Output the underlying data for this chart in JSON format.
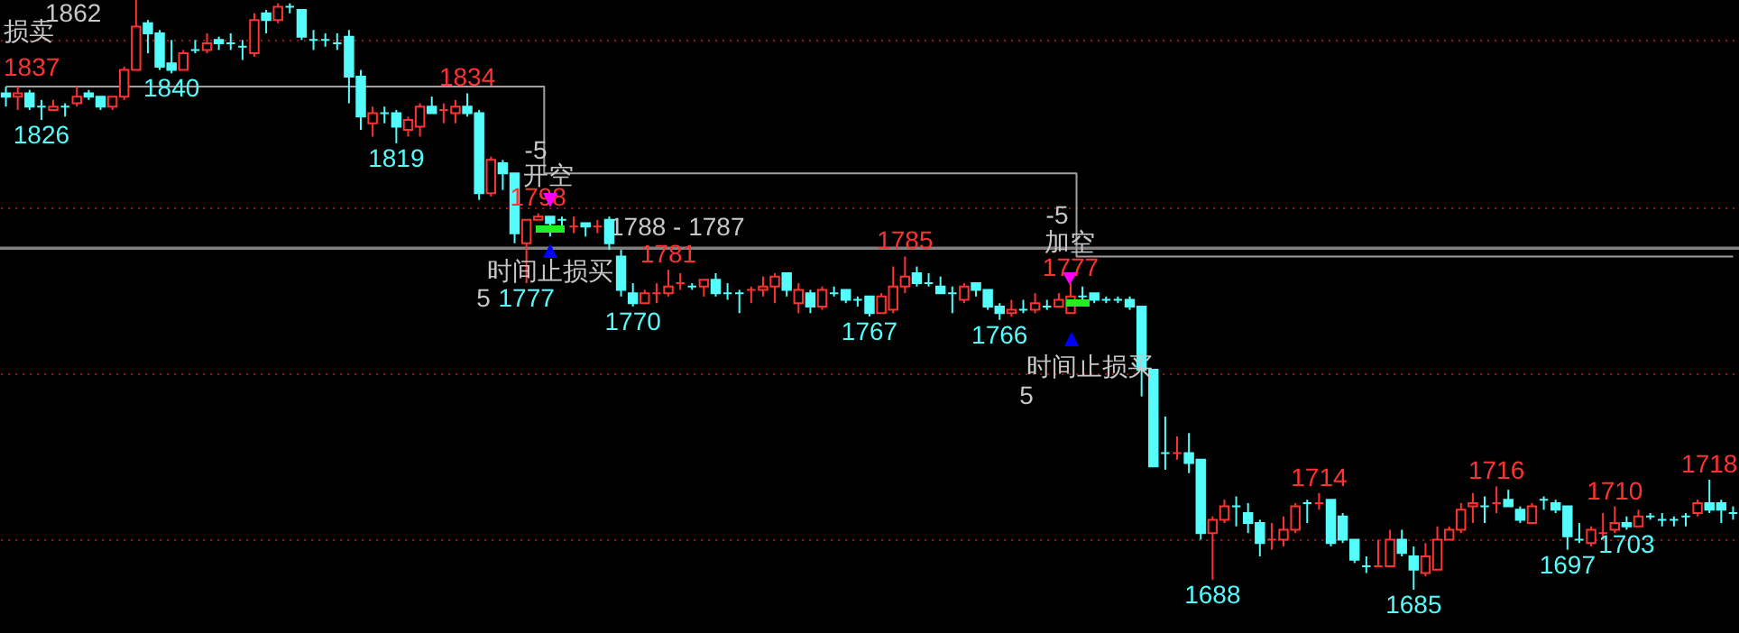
{
  "chart_data": {
    "type": "candlestick",
    "categories": [
      null,
      null,
      null,
      null,
      null,
      null,
      null,
      null,
      null,
      null,
      null,
      null,
      null,
      null,
      null,
      null,
      null,
      null,
      null,
      null,
      null,
      null,
      null,
      null,
      null,
      null,
      null,
      null,
      null,
      null,
      null,
      null,
      null,
      null,
      null,
      null,
      null,
      null,
      null,
      null,
      null,
      null,
      null,
      null,
      null,
      null,
      null,
      null,
      null,
      null,
      null,
      null,
      null,
      null,
      null,
      null,
      null,
      null,
      null,
      null,
      null,
      null,
      null,
      null,
      null,
      null,
      null,
      null,
      null,
      null,
      null,
      null,
      null,
      null,
      null,
      null,
      null,
      null,
      null,
      null,
      null,
      null,
      null,
      null,
      null,
      null,
      null,
      null,
      null,
      null,
      null,
      null,
      null,
      null,
      null,
      null,
      null,
      null,
      null,
      null,
      null,
      null,
      null,
      null,
      null,
      null,
      null,
      null,
      null,
      null,
      null,
      null,
      null,
      null,
      null,
      null,
      null,
      null,
      null,
      null,
      null,
      null,
      null,
      null,
      null,
      null,
      null,
      null,
      null,
      null,
      null,
      null,
      null,
      null,
      null,
      null,
      null,
      null,
      null,
      null,
      null,
      null,
      null,
      null,
      null,
      null,
      null
    ],
    "ohlc": [
      [
        1834,
        1836,
        1830,
        1833
      ],
      [
        1833,
        1836,
        1829,
        1834
      ],
      [
        1834,
        1835,
        1829,
        1830
      ],
      [
        1830,
        1832,
        1826,
        1830
      ],
      [
        1829,
        1832,
        1829,
        1830
      ],
      [
        1830,
        1831,
        1827,
        1830
      ],
      [
        1831,
        1836,
        1830,
        1833
      ],
      [
        1834,
        1835,
        1832,
        1833
      ],
      [
        1833,
        1833,
        1829,
        1830
      ],
      [
        1830,
        1833,
        1829,
        1833
      ],
      [
        1833,
        1842,
        1832,
        1841
      ],
      [
        1841,
        1862,
        1841,
        1854
      ],
      [
        1855,
        1856,
        1846,
        1852
      ],
      [
        1852,
        1853,
        1841,
        1842
      ],
      [
        1843,
        1850,
        1840,
        1841
      ],
      [
        1841,
        1847,
        1841,
        1846
      ],
      [
        1847,
        1850,
        1846,
        1847
      ],
      [
        1847,
        1852,
        1846,
        1849
      ],
      [
        1850,
        1851,
        1847,
        1849
      ],
      [
        1849,
        1852,
        1847,
        1849
      ],
      [
        1848,
        1850,
        1844,
        1848
      ],
      [
        1846,
        1858,
        1845,
        1856
      ],
      [
        1858,
        1859,
        1852,
        1856
      ],
      [
        1856,
        1861,
        1855,
        1860
      ],
      [
        1860,
        1861,
        1858,
        1860
      ],
      [
        1859,
        1859,
        1850,
        1851
      ],
      [
        1850,
        1853,
        1847,
        1850
      ],
      [
        1850,
        1852,
        1848,
        1850
      ],
      [
        1849,
        1852,
        1847,
        1849
      ],
      [
        1851,
        1853,
        1831,
        1839
      ],
      [
        1839,
        1841,
        1823,
        1827
      ],
      [
        1825,
        1830,
        1821,
        1828
      ],
      [
        1828,
        1830,
        1825,
        1828
      ],
      [
        1828,
        1829,
        1819,
        1824
      ],
      [
        1823,
        1827,
        1821,
        1826
      ],
      [
        1824,
        1831,
        1821,
        1830
      ],
      [
        1830,
        1833,
        1828,
        1828
      ],
      [
        1829,
        1831,
        1825,
        1829
      ],
      [
        1828,
        1832,
        1825,
        1830
      ],
      [
        1830,
        1834,
        1827,
        1828
      ],
      [
        1828,
        1829,
        1802,
        1804
      ],
      [
        1804,
        1815,
        1803,
        1814
      ],
      [
        1813,
        1814,
        1805,
        1810
      ],
      [
        1810,
        1810,
        1789,
        1792
      ],
      [
        1789,
        1796,
        1777,
        1796
      ],
      [
        1796,
        1798,
        1796,
        1797
      ],
      [
        1797,
        1797,
        1791,
        1795
      ],
      [
        1796,
        1797,
        1794,
        1796
      ],
      [
        1794,
        1797,
        1792,
        1794
      ],
      [
        1795,
        1795,
        1791,
        1794
      ],
      [
        1794,
        1796,
        1792,
        1794
      ],
      [
        1796,
        1797,
        1787,
        1789
      ],
      [
        1785,
        1787,
        1773,
        1775
      ],
      [
        1774,
        1777,
        1770,
        1771
      ],
      [
        1771,
        1775,
        1771,
        1774
      ],
      [
        1774,
        1777,
        1771,
        1774
      ],
      [
        1774,
        1781,
        1773,
        1776
      ],
      [
        1777,
        1780,
        1775,
        1777
      ],
      [
        1776,
        1777,
        1775,
        1776
      ],
      [
        1776,
        1778,
        1773,
        1778
      ],
      [
        1778,
        1780,
        1773,
        1774
      ],
      [
        1774,
        1777,
        1772,
        1774
      ],
      [
        1774,
        1775,
        1768,
        1774
      ],
      [
        1775,
        1776,
        1771,
        1775
      ],
      [
        1775,
        1779,
        1773,
        1776
      ],
      [
        1776,
        1780,
        1771,
        1779
      ],
      [
        1780,
        1780,
        1773,
        1775
      ],
      [
        1771,
        1777,
        1768,
        1775
      ],
      [
        1774,
        1775,
        1768,
        1770
      ],
      [
        1770,
        1776,
        1769,
        1775
      ],
      [
        1774,
        1776,
        1773,
        1774
      ],
      [
        1775,
        1775,
        1771,
        1772
      ],
      [
        1772,
        1773,
        1770,
        1772
      ],
      [
        1773,
        1773,
        1767,
        1768
      ],
      [
        1768,
        1774,
        1768,
        1773
      ],
      [
        1769,
        1782,
        1768,
        1776
      ],
      [
        1776,
        1785,
        1774,
        1779
      ],
      [
        1780,
        1782,
        1776,
        1777
      ],
      [
        1777,
        1780,
        1776,
        1777
      ],
      [
        1776,
        1779,
        1774,
        1774
      ],
      [
        1774,
        1776,
        1768,
        1774
      ],
      [
        1772,
        1777,
        1771,
        1776
      ],
      [
        1777,
        1777,
        1773,
        1775
      ],
      [
        1775,
        1775,
        1769,
        1770
      ],
      [
        1770,
        1771,
        1766,
        1768
      ],
      [
        1768,
        1772,
        1767,
        1769
      ],
      [
        1769,
        1772,
        1768,
        1769
      ],
      [
        1769,
        1774,
        1768,
        1771
      ],
      [
        1770,
        1772,
        1769,
        1770
      ],
      [
        1770,
        1774,
        1770,
        1772
      ],
      [
        1768,
        1777,
        1768,
        1773
      ],
      [
        1773,
        1776,
        1771,
        1773
      ],
      [
        1774,
        1774,
        1771,
        1772
      ],
      [
        1772,
        1773,
        1771,
        1772
      ],
      [
        1772,
        1773,
        1771,
        1772
      ],
      [
        1772,
        1773,
        1769,
        1770
      ],
      [
        1770,
        1770,
        1743,
        1751
      ],
      [
        1751,
        1751,
        1722,
        1722
      ],
      [
        1726,
        1737,
        1721,
        1726
      ],
      [
        1726,
        1731,
        1724,
        1726
      ],
      [
        1726,
        1732,
        1720,
        1723
      ],
      [
        1724,
        1724,
        1700,
        1702
      ],
      [
        1702,
        1707,
        1688,
        1706
      ],
      [
        1706,
        1712,
        1705,
        1710
      ],
      [
        1710,
        1713,
        1704,
        1710
      ],
      [
        1708,
        1711,
        1702,
        1705
      ],
      [
        1705,
        1706,
        1695,
        1699
      ],
      [
        1700,
        1705,
        1697,
        1700
      ],
      [
        1700,
        1707,
        1698,
        1703
      ],
      [
        1703,
        1711,
        1702,
        1710
      ],
      [
        1711,
        1712,
        1705,
        1711
      ],
      [
        1711,
        1714,
        1709,
        1711
      ],
      [
        1712,
        1712,
        1698,
        1699
      ],
      [
        1707,
        1708,
        1699,
        1700
      ],
      [
        1700,
        1700,
        1693,
        1694
      ],
      [
        1692,
        1695,
        1690,
        1692
      ],
      [
        1692,
        1700,
        1692,
        1692
      ],
      [
        1692,
        1703,
        1692,
        1700
      ],
      [
        1700,
        1703,
        1695,
        1696
      ],
      [
        1695,
        1698,
        1685,
        1691
      ],
      [
        1690,
        1699,
        1689,
        1695
      ],
      [
        1691,
        1704,
        1691,
        1700
      ],
      [
        1700,
        1704,
        1700,
        1703
      ],
      [
        1703,
        1711,
        1702,
        1709
      ],
      [
        1710,
        1714,
        1705,
        1711
      ],
      [
        1710,
        1713,
        1705,
        1710
      ],
      [
        1711,
        1716,
        1708,
        1711
      ],
      [
        1712,
        1715,
        1710,
        1710
      ],
      [
        1709,
        1710,
        1705,
        1706
      ],
      [
        1705,
        1711,
        1705,
        1710
      ],
      [
        1712,
        1713,
        1709,
        1712
      ],
      [
        1711,
        1712,
        1708,
        1709
      ],
      [
        1710,
        1710,
        1697,
        1701
      ],
      [
        1700,
        1705,
        1699,
        1700
      ],
      [
        1699,
        1704,
        1698,
        1703
      ],
      [
        1702,
        1708,
        1700,
        1702
      ],
      [
        1703,
        1710,
        1702,
        1705
      ],
      [
        1705,
        1707,
        1703,
        1704
      ],
      [
        1704,
        1709,
        1704,
        1707
      ],
      [
        1707,
        1708,
        1706,
        1707
      ],
      [
        1706,
        1708,
        1704,
        1706
      ],
      [
        1706,
        1707,
        1704,
        1706
      ],
      [
        1707,
        1708,
        1704,
        1707
      ],
      [
        1708,
        1712,
        1707,
        1711
      ],
      [
        1711,
        1718,
        1708,
        1709
      ],
      [
        1711,
        1712,
        1705,
        1709
      ],
      [
        1708,
        1710,
        1706,
        1708
      ]
    ],
    "colors": [
      "#54fcfc",
      "#ff3232",
      "#54fcfc",
      "#54fcfc",
      "#ff3232",
      "#54fcfc",
      "#ff3232",
      "#54fcfc",
      "#54fcfc",
      "#ff3232",
      "#ff3232",
      "#ff3232",
      "#54fcfc",
      "#54fcfc",
      "#54fcfc",
      "#ff3232",
      "#54fcfc",
      "#ff3232",
      "#54fcfc",
      "#54fcfc",
      "#54fcfc",
      "#ff3232",
      "#54fcfc",
      "#ff3232",
      "#54fcfc",
      "#54fcfc",
      "#54fcfc",
      "#54fcfc",
      "#54fcfc",
      "#54fcfc",
      "#54fcfc",
      "#ff3232",
      "#54fcfc",
      "#54fcfc",
      "#ff3232",
      "#ff3232",
      "#54fcfc",
      "#ff3232",
      "#ff3232",
      "#54fcfc",
      "#54fcfc",
      "#ff3232",
      "#54fcfc",
      "#54fcfc",
      "#ff3232",
      "#ff3232",
      "#54fcfc",
      "#54fcfc",
      "#ff3232",
      "#54fcfc",
      "#ff3232",
      "#54fcfc",
      "#54fcfc",
      "#54fcfc",
      "#ff3232",
      "#ff3232",
      "#ff3232",
      "#ff3232",
      "#54fcfc",
      "#ff3232",
      "#54fcfc",
      "#54fcfc",
      "#54fcfc",
      "#ff3232",
      "#ff3232",
      "#ff3232",
      "#54fcfc",
      "#ff3232",
      "#54fcfc",
      "#ff3232",
      "#54fcfc",
      "#54fcfc",
      "#54fcfc",
      "#54fcfc",
      "#ff3232",
      "#ff3232",
      "#ff3232",
      "#54fcfc",
      "#54fcfc",
      "#54fcfc",
      "#54fcfc",
      "#ff3232",
      "#54fcfc",
      "#54fcfc",
      "#54fcfc",
      "#ff3232",
      "#54fcfc",
      "#ff3232",
      "#54fcfc",
      "#ff3232",
      "#ff3232",
      "#54fcfc",
      "#54fcfc",
      "#54fcfc",
      "#54fcfc",
      "#54fcfc",
      "#54fcfc",
      "#54fcfc",
      "#54fcfc",
      "#ff3232",
      "#54fcfc",
      "#54fcfc",
      "#ff3232",
      "#ff3232",
      "#54fcfc",
      "#54fcfc",
      "#54fcfc",
      "#ff3232",
      "#ff3232",
      "#ff3232",
      "#54fcfc",
      "#ff3232",
      "#54fcfc",
      "#54fcfc",
      "#54fcfc",
      "#54fcfc",
      "#ff3232",
      "#ff3232",
      "#54fcfc",
      "#54fcfc",
      "#ff3232",
      "#ff3232",
      "#ff3232",
      "#ff3232",
      "#ff3232",
      "#54fcfc",
      "#ff3232",
      "#54fcfc",
      "#54fcfc",
      "#ff3232",
      "#54fcfc",
      "#54fcfc",
      "#54fcfc",
      "#54fcfc",
      "#ff3232",
      "#ff3232",
      "#ff3232",
      "#54fcfc",
      "#ff3232",
      "#54fcfc",
      "#54fcfc",
      "#54fcfc",
      "#54fcfc",
      "#ff3232",
      "#54fcfc",
      "#54fcfc",
      "#54fcfc"
    ],
    "ylim": [
      1672,
      1862
    ],
    "yticks": [
      {
        "value": 1700,
        "label": null
      },
      {
        "value": 1750,
        "label": null
      },
      {
        "value": 1800,
        "label": null
      },
      {
        "value": 1850,
        "label": null
      }
    ],
    "grid": "y",
    "series": [
      {
        "type": "step",
        "color": "#a0a0a0",
        "values": [
          1836,
          1836,
          1836,
          1836,
          1836,
          1836,
          1836,
          1836,
          1836,
          1836,
          1836,
          1836,
          1836,
          1836,
          1836,
          1836,
          1836,
          1836,
          1836,
          1836,
          1836,
          1836,
          1836,
          1836,
          1836,
          1836,
          1836,
          1836,
          1836,
          1836,
          1836,
          1836,
          1836,
          1836,
          1836,
          1836,
          1836,
          1836,
          1836,
          1836,
          1836,
          1836,
          1836,
          1836,
          1836,
          1836,
          1810,
          1810,
          1810,
          1810,
          1810,
          1810,
          1810,
          1810,
          1810,
          1810,
          1810,
          1810,
          1810,
          1810,
          1810,
          1810,
          1810,
          1810,
          1810,
          1810,
          1810,
          1810,
          1810,
          1810,
          1810,
          1810,
          1810,
          1810,
          1810,
          1810,
          1810,
          1810,
          1810,
          1810,
          1810,
          1810,
          1810,
          1810,
          1810,
          1810,
          1810,
          1810,
          1810,
          1810,
          1810,
          1785,
          1785,
          1785,
          1785,
          1785,
          1785,
          1785,
          1785,
          1785,
          1785,
          1785,
          1785,
          1785,
          1785,
          1785,
          1785,
          1785,
          1785,
          1785,
          1785,
          1785,
          1785,
          1785,
          1785,
          1785,
          1785,
          1785,
          1785,
          1785,
          1785,
          1785,
          1785,
          1785,
          1785,
          1785,
          1785,
          1785,
          1785,
          1785,
          1785,
          1785,
          1785,
          1785,
          1785,
          1785,
          1785,
          1785,
          1785,
          1785,
          1785,
          1785,
          1785,
          1785,
          1785,
          1785,
          1785
        ]
      }
    ],
    "bands": [
      {
        "axis": "y",
        "from": 1787,
        "to": 1788,
        "label": "1788 - 1787",
        "color": "#808080"
      }
    ],
    "annotations": [
      "损卖",
      "1837",
      "-5",
      "开空",
      "时间止损买",
      "5",
      "-5",
      "加空",
      "时间止损买",
      "5",
      "1862",
      {
        "text": "1826",
        "y": 1826
      },
      {
        "text": "1840",
        "y": 1840
      },
      {
        "text": "1819",
        "y": 1819
      },
      {
        "text": "1834",
        "y": 1834
      },
      {
        "text": "1777",
        "y": 1777
      },
      {
        "text": "1798",
        "y": 1798
      },
      {
        "text": "1770",
        "y": 1770
      },
      {
        "text": "1781",
        "y": 1781
      },
      {
        "text": "1767",
        "y": 1767
      },
      {
        "text": "1785",
        "y": 1785
      },
      {
        "text": "1766",
        "y": 1766
      },
      {
        "text": "1777",
        "y": 1777
      },
      {
        "text": "1688",
        "y": 1688
      },
      {
        "text": "1714",
        "y": 1714
      },
      {
        "text": "1685",
        "y": 1685
      },
      {
        "text": "1716",
        "y": 1716
      },
      {
        "text": "1697",
        "y": 1697
      },
      {
        "text": "1710",
        "y": 1710
      },
      {
        "text": "1703",
        "y": 1703
      },
      {
        "text": "1718",
        "y": 1718
      }
    ]
  }
}
